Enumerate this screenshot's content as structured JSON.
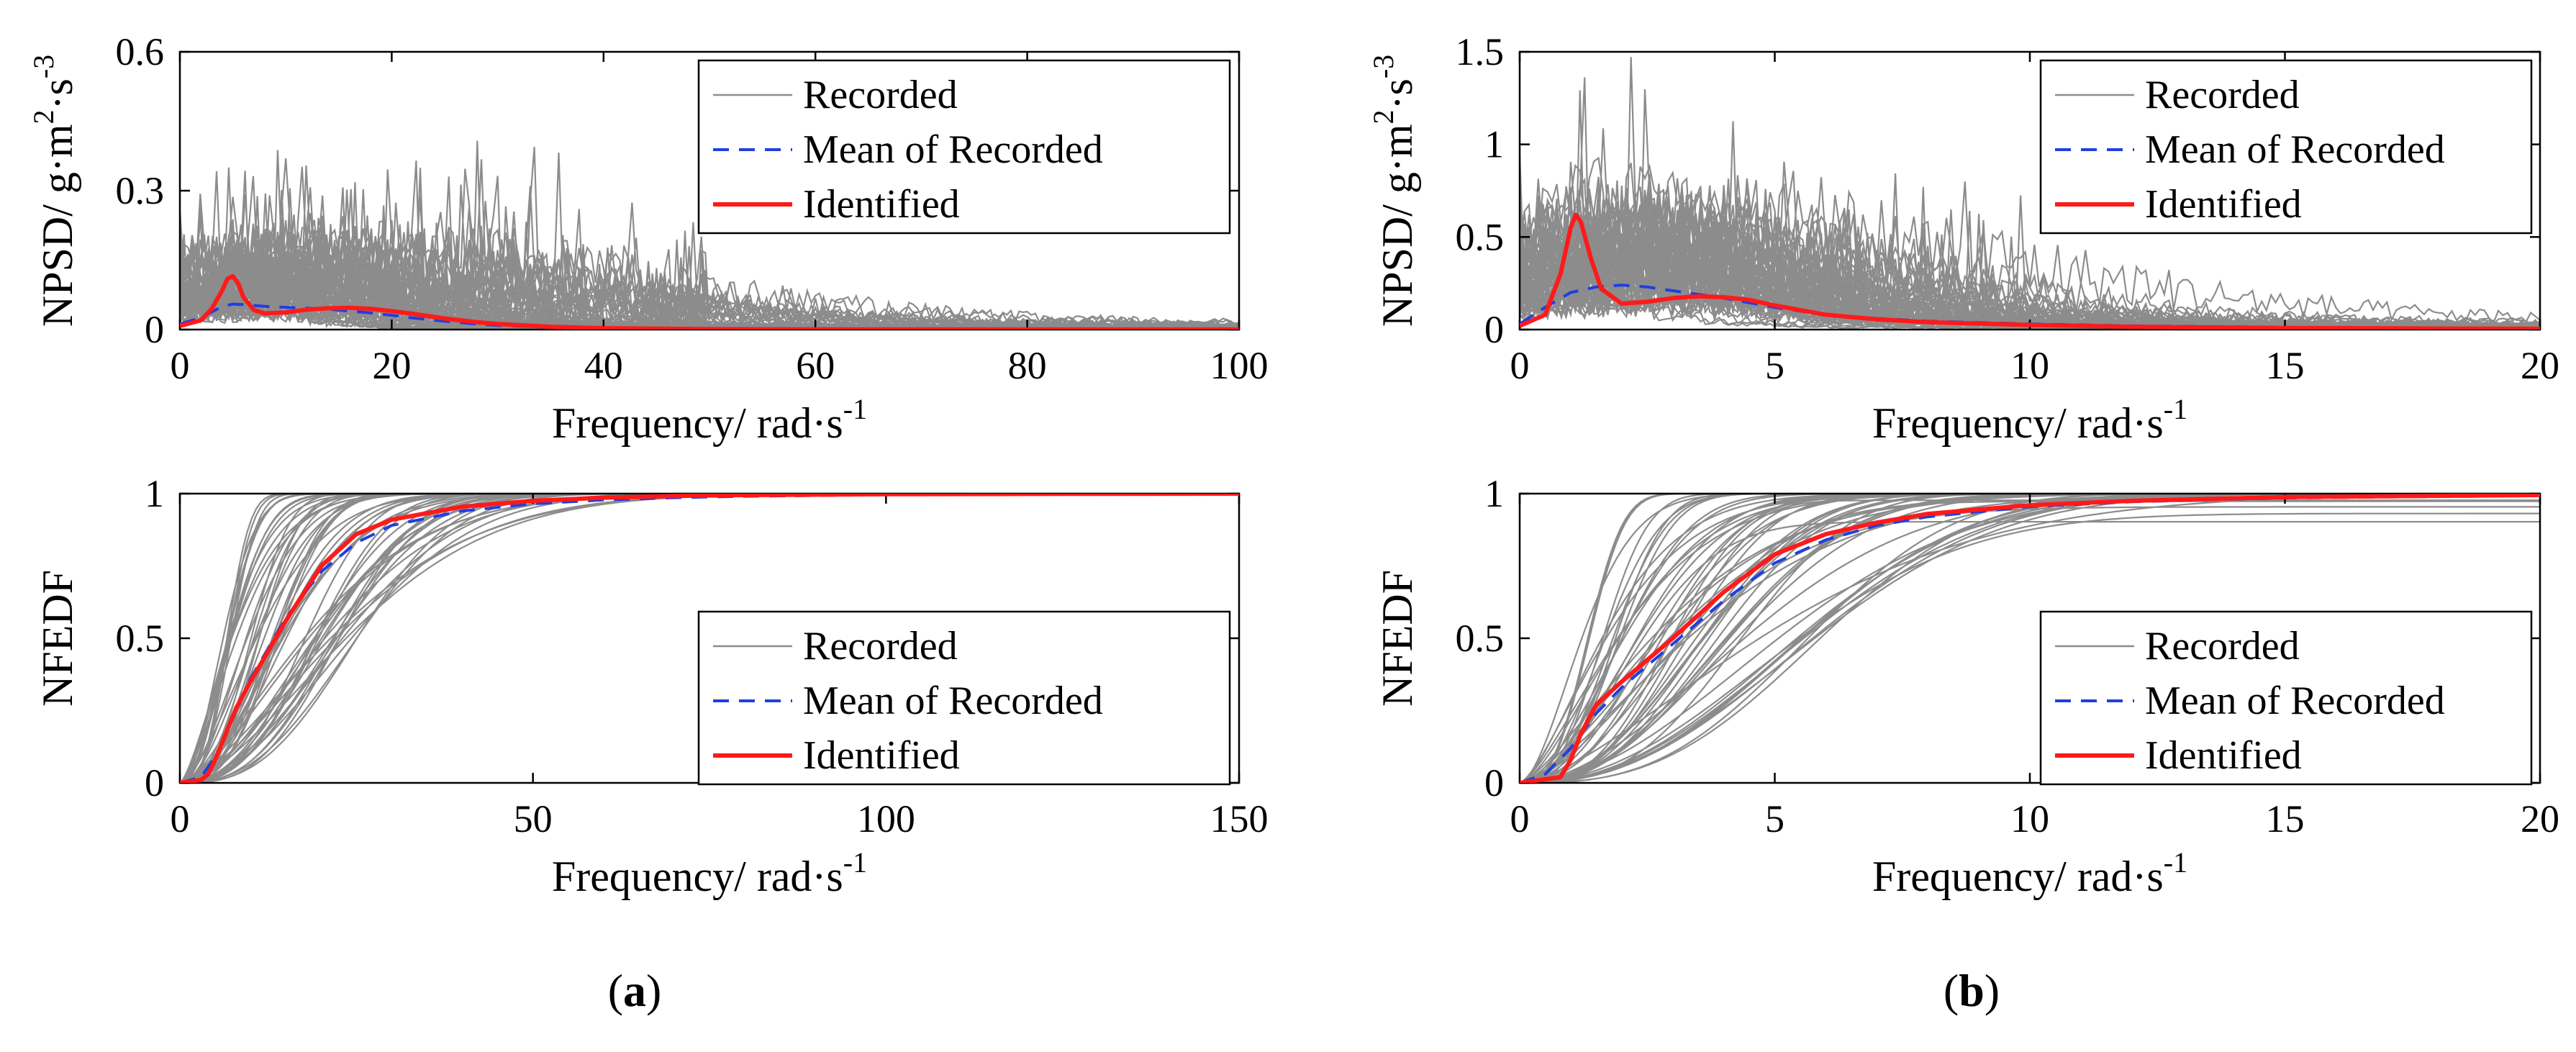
{
  "colors": {
    "recorded": "#8c8c8c",
    "mean": "#1f3fe0",
    "identified": "#ff1a1a"
  },
  "legend": [
    "Recorded",
    "Mean of Recorded",
    "Identified"
  ],
  "captions": [
    "a",
    "b"
  ],
  "chart_data": [
    {
      "id": "a-npsd",
      "type": "line",
      "panel": "a",
      "xlabel": "Frequency/ rad·s",
      "xlabel_sup": "-1",
      "ylabel": "NPSD/ g·m",
      "ylabel_sup1": "2",
      "ylabel_mid": "·s",
      "ylabel_sup2": "-3",
      "xlim": [
        0,
        100
      ],
      "ylim": [
        0,
        0.6
      ],
      "xticks": [
        0,
        20,
        40,
        60,
        80,
        100
      ],
      "yticks": [
        0,
        0.3,
        0.6
      ],
      "ytick_labels": [
        "0",
        "0.3",
        "0.6"
      ],
      "legend_position": "top-right",
      "series": [
        {
          "name": "Mean of Recorded",
          "x": [
            0,
            2,
            3,
            4,
            5,
            6,
            8,
            10,
            12,
            14,
            16,
            18,
            20,
            22,
            25,
            28,
            30,
            35,
            40,
            50,
            60,
            70,
            80,
            100
          ],
          "y": [
            0.012,
            0.026,
            0.038,
            0.05,
            0.055,
            0.054,
            0.05,
            0.048,
            0.046,
            0.044,
            0.04,
            0.036,
            0.031,
            0.025,
            0.018,
            0.012,
            0.009,
            0.005,
            0.003,
            0.002,
            0.001,
            0.001,
            0.0005,
            0.0003
          ]
        },
        {
          "name": "Identified",
          "x": [
            0,
            2,
            3,
            4,
            4.5,
            5,
            5.5,
            6,
            7,
            8,
            10,
            12,
            14,
            16,
            18,
            20,
            22,
            25,
            28,
            30,
            35,
            40,
            50,
            60,
            80,
            100
          ],
          "y": [
            0.008,
            0.02,
            0.045,
            0.085,
            0.11,
            0.115,
            0.1,
            0.07,
            0.042,
            0.035,
            0.037,
            0.043,
            0.046,
            0.047,
            0.045,
            0.04,
            0.034,
            0.024,
            0.016,
            0.012,
            0.006,
            0.003,
            0.001,
            0.0005,
            0.0002,
            0.0001
          ]
        }
      ]
    },
    {
      "id": "a-nfedf",
      "type": "line",
      "panel": "a",
      "xlabel": "Frequency/ rad·s",
      "xlabel_sup": "-1",
      "ylabel": "NFEDF",
      "xlim": [
        0,
        150
      ],
      "ylim": [
        0,
        1
      ],
      "xticks": [
        0,
        50,
        100,
        150
      ],
      "yticks": [
        0,
        0.5,
        1
      ],
      "ytick_labels": [
        "0",
        "0.5",
        "1"
      ],
      "legend_position": "center-right",
      "series": [
        {
          "name": "Mean of Recorded",
          "x": [
            0,
            3,
            5,
            8,
            10,
            15,
            20,
            25,
            30,
            40,
            50,
            60,
            70,
            80,
            100,
            120,
            150
          ],
          "y": [
            0,
            0.02,
            0.09,
            0.25,
            0.36,
            0.57,
            0.73,
            0.83,
            0.89,
            0.94,
            0.965,
            0.978,
            0.986,
            0.991,
            0.996,
            0.998,
            1.0
          ]
        },
        {
          "name": "Identified",
          "x": [
            0,
            3,
            4,
            5,
            6,
            8,
            10,
            15,
            20,
            25,
            30,
            40,
            50,
            60,
            70,
            80,
            100,
            120,
            150
          ],
          "y": [
            0,
            0.01,
            0.03,
            0.08,
            0.14,
            0.26,
            0.35,
            0.56,
            0.75,
            0.86,
            0.91,
            0.955,
            0.975,
            0.986,
            0.992,
            0.995,
            0.998,
            0.999,
            1.0
          ]
        }
      ]
    },
    {
      "id": "b-npsd",
      "type": "line",
      "panel": "b",
      "xlabel": "Frequency/ rad·s",
      "xlabel_sup": "-1",
      "ylabel": "NPSD/ g·m",
      "ylabel_sup1": "2",
      "ylabel_mid": "·s",
      "ylabel_sup2": "-3",
      "xlim": [
        0,
        20
      ],
      "ylim": [
        0,
        1.5
      ],
      "xticks": [
        0,
        5,
        10,
        15,
        20
      ],
      "yticks": [
        0,
        0.5,
        1,
        1.5
      ],
      "ytick_labels": [
        "0",
        "0.5",
        "1",
        "1.5"
      ],
      "legend_position": "top-right",
      "series": [
        {
          "name": "Mean of Recorded",
          "x": [
            0,
            0.5,
            1,
            1.5,
            2,
            2.5,
            3,
            3.5,
            4,
            5,
            6,
            7,
            8,
            10,
            12,
            15,
            20
          ],
          "y": [
            0.03,
            0.12,
            0.2,
            0.23,
            0.24,
            0.23,
            0.21,
            0.19,
            0.17,
            0.12,
            0.08,
            0.06,
            0.045,
            0.03,
            0.02,
            0.012,
            0.006
          ]
        },
        {
          "name": "Identified",
          "x": [
            0,
            0.5,
            0.8,
            1,
            1.1,
            1.2,
            1.4,
            1.6,
            2,
            2.5,
            3,
            3.5,
            4,
            4.5,
            5,
            6,
            7,
            8,
            10,
            12,
            15,
            20
          ],
          "y": [
            0.02,
            0.08,
            0.3,
            0.55,
            0.62,
            0.58,
            0.38,
            0.22,
            0.14,
            0.15,
            0.17,
            0.18,
            0.175,
            0.16,
            0.13,
            0.08,
            0.055,
            0.04,
            0.025,
            0.015,
            0.008,
            0.004
          ]
        }
      ]
    },
    {
      "id": "b-nfedf",
      "type": "line",
      "panel": "b",
      "xlabel": "Frequency/ rad·s",
      "xlabel_sup": "-1",
      "ylabel": "NFEDF",
      "xlim": [
        0,
        20
      ],
      "ylim": [
        0,
        1
      ],
      "xticks": [
        0,
        5,
        10,
        15,
        20
      ],
      "yticks": [
        0,
        0.5,
        1
      ],
      "ytick_labels": [
        "0",
        "0.5",
        "1"
      ],
      "legend_position": "center-right",
      "series": [
        {
          "name": "Mean of Recorded",
          "x": [
            0,
            0.5,
            1,
            1.5,
            2,
            3,
            4,
            5,
            6,
            7,
            8,
            10,
            12,
            15,
            20
          ],
          "y": [
            0,
            0.03,
            0.12,
            0.24,
            0.33,
            0.48,
            0.63,
            0.76,
            0.84,
            0.89,
            0.92,
            0.955,
            0.972,
            0.985,
            0.993
          ]
        },
        {
          "name": "Identified",
          "x": [
            0,
            0.8,
            1,
            1.2,
            1.5,
            2,
            3,
            4,
            5,
            6,
            7,
            8,
            10,
            12,
            15,
            20
          ],
          "y": [
            0,
            0.02,
            0.08,
            0.17,
            0.27,
            0.35,
            0.5,
            0.66,
            0.79,
            0.86,
            0.9,
            0.93,
            0.96,
            0.975,
            0.988,
            0.995
          ]
        }
      ]
    }
  ]
}
